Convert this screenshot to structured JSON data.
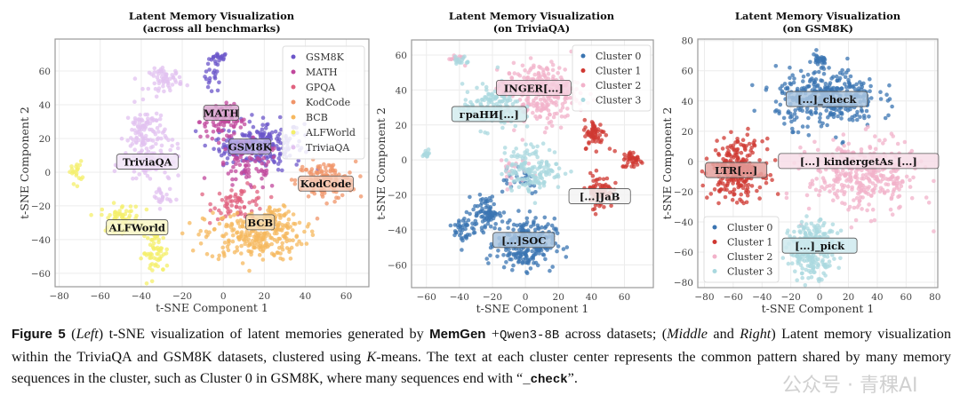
{
  "figure": {
    "caption": {
      "fig_label": "Figure 5",
      "p1": " (",
      "left_word": "Left",
      "p2": ") t-SNE visualization of latent memories generated by ",
      "memgen": "MemGen",
      "p3": " +",
      "model": "Qwen3-8B",
      "p4": " across datasets; (",
      "middle_word": "Middle",
      "p5": " and ",
      "right_word": "Right",
      "p6": ") Latent memory visualization within the TriviaQA and GSM8K datasets, clustered using ",
      "k_word": "K",
      "p7": "-means. The text at each cluster center represents the common pattern shared by many memory sequences in the cluster, such as Cluster 0 in GSM8K, where many sequences end with “",
      "check_word": "_check",
      "p8": "”."
    },
    "watermark": "公众号 · 青稞AI"
  },
  "chart_data": [
    {
      "type": "scatter",
      "title": [
        "Latent Memory Visualization",
        "(across all benchmarks)"
      ],
      "xlabel": "t-SNE Component 1",
      "ylabel": "t-SNE Component 2",
      "xlim": [
        -82,
        71
      ],
      "ylim": [
        -68,
        79
      ],
      "xticks": [
        -80,
        -60,
        -40,
        -20,
        0,
        20,
        40,
        60
      ],
      "yticks": [
        -60,
        -40,
        -20,
        0,
        20,
        40,
        60
      ],
      "grid": true,
      "legend_position": "top-right",
      "series": [
        {
          "name": "GSM8K",
          "color": "#6b55c9",
          "blobs": [
            [
              -2,
              68,
              3,
              2,
              20
            ],
            [
              -5,
              57,
              2.5,
              6,
              20
            ],
            [
              20,
              16,
              12,
              9,
              200
            ],
            [
              5,
              15,
              6,
              4,
              40
            ]
          ]
        },
        {
          "name": "MATH",
          "color": "#c0479c",
          "blobs": [
            [
              0,
              30,
              7,
              6,
              80
            ],
            [
              12,
              3,
              10,
              9,
              80
            ]
          ]
        },
        {
          "name": "GPQA",
          "color": "#e0627f",
          "blobs": [
            [
              8,
              -18,
              8,
              6,
              70
            ]
          ]
        },
        {
          "name": "KodCode",
          "color": "#f09468",
          "blobs": [
            [
              50,
              -5,
              9,
              7,
              130
            ]
          ]
        },
        {
          "name": "BCB",
          "color": "#f6b85e",
          "blobs": [
            [
              15,
              -38,
              15,
              9,
              240
            ],
            [
              26,
              -27,
              5,
              5,
              40
            ]
          ]
        },
        {
          "name": "ALFWorld",
          "color": "#f4ef6a",
          "blobs": [
            [
              -72,
              0,
              2,
              4,
              20
            ],
            [
              -50,
              -27,
              6,
              5,
              60
            ],
            [
              -33,
              -48,
              4,
              8,
              60
            ]
          ]
        },
        {
          "name": "TriviaQA",
          "color": "#e2c2f0",
          "blobs": [
            [
              -28,
              55,
              5,
              4,
              60
            ],
            [
              -38,
              22,
              6,
              11,
              120
            ],
            [
              -34,
              4,
              9,
              7,
              70
            ],
            [
              -30,
              -15,
              3,
              4,
              20
            ]
          ]
        }
      ],
      "annotations": [
        {
          "text": "MATH",
          "x": -1,
          "y": 35,
          "bg": "#d9a8d0"
        },
        {
          "text": "GSM8K",
          "x": 13,
          "y": 15,
          "bg": "#b8aee6"
        },
        {
          "text": "TriviaQA",
          "x": -37,
          "y": 6,
          "bg": "#f1e4f7"
        },
        {
          "text": "KodCode",
          "x": 50,
          "y": -7,
          "bg": "#f6c9b4"
        },
        {
          "text": "BCB",
          "x": 18,
          "y": -30,
          "bg": "#f6d8a8"
        },
        {
          "text": "ALFWorld",
          "x": -42,
          "y": -33,
          "bg": "#f8f6c4"
        }
      ]
    },
    {
      "type": "scatter",
      "title": [
        "Latent Memory Visualization",
        "(on TriviaQA)"
      ],
      "xlabel": "t-SNE Component 1",
      "ylabel": "t-SNE Component 2",
      "xlim": [
        -69,
        77.5
      ],
      "ylim": [
        -73,
        68.6
      ],
      "xticks": [
        -60,
        -40,
        -20,
        0,
        20,
        40,
        60
      ],
      "yticks": [
        -60,
        -40,
        -20,
        0,
        20,
        40,
        60
      ],
      "grid": true,
      "legend_position": "top-right",
      "series": [
        {
          "name": "Cluster 0",
          "color": "#3a74b1",
          "blobs": [
            [
              0,
              -48,
              11,
              9,
              250
            ],
            [
              -24,
              -30,
              5,
              6,
              80
            ],
            [
              -37,
              -40,
              4,
              6,
              40
            ],
            [
              -5,
              -10,
              10,
              6,
              30
            ]
          ]
        },
        {
          "name": "Cluster 1",
          "color": "#cf3832",
          "blobs": [
            [
              42,
              15,
              4,
              5,
              60
            ],
            [
              65,
              0,
              4,
              3,
              40
            ],
            [
              45,
              -18,
              5,
              6,
              90
            ]
          ]
        },
        {
          "name": "Cluster 2",
          "color": "#f2b2ca",
          "blobs": [
            [
              10,
              38,
              14,
              11,
              250
            ],
            [
              -42,
              58,
              3,
              2,
              15
            ],
            [
              -10,
              -5,
              6,
              5,
              20
            ]
          ]
        },
        {
          "name": "Cluster 3",
          "color": "#a9d8df",
          "blobs": [
            [
              -20,
              30,
              11,
              8,
              150
            ],
            [
              5,
              -5,
              11,
              8,
              150
            ],
            [
              -60,
              3,
              1.5,
              2,
              15
            ],
            [
              -39,
              57,
              3,
              2,
              15
            ]
          ]
        }
      ],
      "annotations": [
        {
          "text": "INGER[...]",
          "x": 5,
          "y": 41,
          "bg": "#f5cedd"
        },
        {
          "text": "граНИ[...]",
          "x": -22,
          "y": 26,
          "bg": "#d4ecef"
        },
        {
          "text": "[...]JaB",
          "x": 45,
          "y": -21,
          "bg": "#f3f3f3"
        },
        {
          "text": "[...]SOC",
          "x": -1,
          "y": -46,
          "bg": "#a9c4df"
        }
      ]
    },
    {
      "type": "scatter",
      "title": [
        "Latent Memory Visualization",
        "(on GSM8K)"
      ],
      "xlabel": "t-SNE Component 1",
      "ylabel": "t-SNE Component 2",
      "xlim": [
        -84.6,
        82
      ],
      "ylim": [
        -83.5,
        81
      ],
      "xticks": [
        -80,
        -60,
        -40,
        -20,
        0,
        20,
        40,
        60,
        80
      ],
      "yticks": [
        -80,
        -60,
        -40,
        -20,
        0,
        20,
        40,
        60,
        80
      ],
      "grid": true,
      "legend_position": "lower-left",
      "series": [
        {
          "name": "Cluster 0",
          "color": "#3a74b1",
          "blobs": [
            [
              5,
              42,
              22,
              12,
              350
            ],
            [
              0,
              66,
              4,
              3,
              25
            ]
          ]
        },
        {
          "name": "Cluster 1",
          "color": "#cf3832",
          "blobs": [
            [
              -57,
              -5,
              11,
              12,
              260
            ]
          ]
        },
        {
          "name": "Cluster 2",
          "color": "#f2b2ca",
          "blobs": [
            [
              30,
              -10,
              24,
              15,
              350
            ]
          ]
        },
        {
          "name": "Cluster 3",
          "color": "#a9d8df",
          "blobs": [
            [
              -5,
              -58,
              10,
              11,
              250
            ]
          ]
        }
      ],
      "annotations": [
        {
          "text": "[...]_check",
          "x": 5,
          "y": 41,
          "bg": "#a9c4df"
        },
        {
          "text": "LTR[...]",
          "x": -58,
          "y": -6,
          "bg": "#e4a19e"
        },
        {
          "text": "[...] kindergetAs [...]",
          "x": 27,
          "y": 0,
          "bg": "#f7dde8"
        },
        {
          "text": "[...]_pick",
          "x": 0,
          "y": -56,
          "bg": "#cfeaee"
        }
      ]
    }
  ]
}
